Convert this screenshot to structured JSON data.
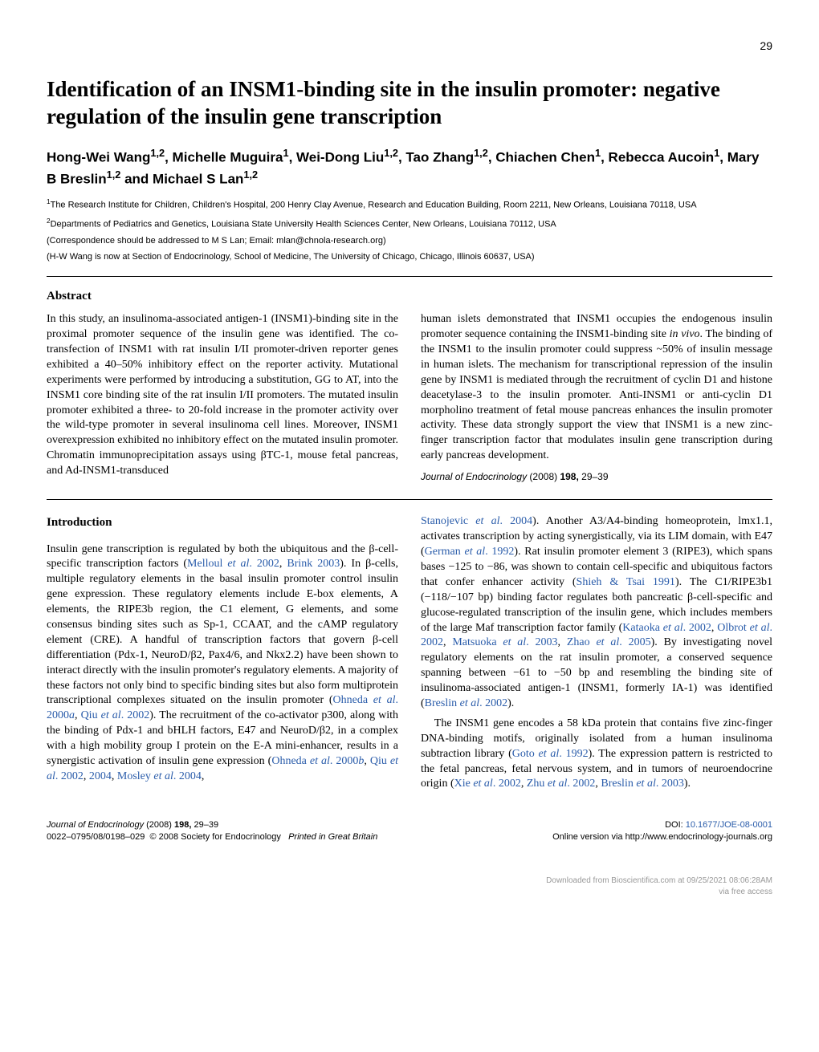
{
  "pageNumber": "29",
  "title": "Identification of an INSM1-binding site in the insulin promoter: negative regulation of the insulin gene transcription",
  "authorsHtml": "Hong-Wei Wang<sup>1,2</sup>, Michelle Muguira<sup>1</sup>, Wei-Dong Liu<sup>1,2</sup>, Tao Zhang<sup>1,2</sup>, Chiachen Chen<sup>1</sup>, Rebecca Aucoin<sup>1</sup>, Mary B Breslin<sup>1,2</sup> and Michael S Lan<sup>1,2</sup>",
  "affil1Html": "<sup>1</sup>The Research Institute for Children, Children's Hospital, 200 Henry Clay Avenue, Research and Education Building, Room 2211, New Orleans, Louisiana 70118, USA",
  "affil2Html": "<sup>2</sup>Departments of Pediatrics and Genetics, Louisiana State University Health Sciences Center, New Orleans, Louisiana 70112, USA",
  "correspondence": "(Correspondence should be addressed to M S Lan; Email: mlan@chnola-research.org)",
  "nowAt": "(H-W Wang is now at Section of Endocrinology, School of Medicine, The University of Chicago, Chicago, Illinois 60637, USA)",
  "abstractHeading": "Abstract",
  "abstractLeft": "In this study, an insulinoma-associated antigen-1 (INSM1)-binding site in the proximal promoter sequence of the insulin gene was identified. The co-transfection of INSM1 with rat insulin I/II promoter-driven reporter genes exhibited a 40–50% inhibitory effect on the reporter activity. Mutational experiments were performed by introducing a substitution, GG to AT, into the INSM1 core binding site of the rat insulin I/II promoters. The mutated insulin promoter exhibited a three- to 20-fold increase in the promoter activity over the wild-type promoter in several insulinoma cell lines. Moreover, INSM1 overexpression exhibited no inhibitory effect on the mutated insulin promoter. Chromatin immunoprecipitation assays using βTC-1, mouse fetal pancreas, and Ad-INSM1-transduced",
  "abstractRightHtml": "human islets demonstrated that INSM1 occupies the endogenous insulin promoter sequence containing the INSM1-binding site <span class=\"italic\">in vivo</span>. The binding of the INSM1 to the insulin promoter could suppress ~50% of insulin message in human islets. The mechanism for transcriptional repression of the insulin gene by INSM1 is mediated through the recruitment of cyclin D1 and histone deacetylase-3 to the insulin promoter. Anti-INSM1 or anti-cyclin D1 morpholino treatment of fetal mouse pancreas enhances the insulin promoter activity. These data strongly support the view that INSM1 is a new zinc-finger transcription factor that modulates insulin gene transcription during early pancreas development.",
  "journalRefHtml": "<span class=\"italic\">Journal of Endocrinology</span> (2008) <b>198,</b> 29–39",
  "introHeading": "Introduction",
  "introLeftHtml": "Insulin gene transcription is regulated by both the ubiquitous and the β-cell-specific transcription factors (<span class=\"link\">Melloul <span class=\"italic\">et al</span>. 2002</span>, <span class=\"link\">Brink 2003</span>). In β-cells, multiple regulatory elements in the basal insulin promoter control insulin gene expression. These regulatory elements include E-box elements, A elements, the RIPE3b region, the C1 element, G elements, and some consensus binding sites such as Sp-1, CCAAT, and the cAMP regulatory element (CRE). A handful of transcription factors that govern β-cell differentiation (Pdx-1, NeuroD/β2, Pax4/6, and Nkx2.2) have been shown to interact directly with the insulin promoter's regulatory elements. A majority of these factors not only bind to specific binding sites but also form multiprotein transcriptional complexes situated on the insulin promoter (<span class=\"link\">Ohneda <span class=\"italic\">et al</span>. 2000<span class=\"italic\">a</span></span>, <span class=\"link\">Qiu <span class=\"italic\">et al</span>. 2002</span>). The recruitment of the co-activator p300, along with the binding of Pdx-1 and bHLH factors, E47 and NeuroD/β2, in a complex with a high mobility group I protein on the E-A mini-enhancer, results in a synergistic activation of insulin gene expression (<span class=\"link\">Ohneda <span class=\"italic\">et al</span>. 2000<span class=\"italic\">b</span></span>, <span class=\"link\">Qiu <span class=\"italic\">et al</span>. 2002</span>, <span class=\"link\">2004</span>, <span class=\"link\">Mosley <span class=\"italic\">et al</span>. 2004</span>,",
  "introRightP1Html": "<span class=\"link\">Stanojevic <span class=\"italic\">et al</span>. 2004</span>). Another A3/A4-binding homeoprotein, lmx1.1, activates transcription by acting synergistically, via its LIM domain, with E47 (<span class=\"link\">German <span class=\"italic\">et al</span>. 1992</span>). Rat insulin promoter element 3 (RIPE3), which spans bases −125 to −86, was shown to contain cell-specific and ubiquitous factors that confer enhancer activity (<span class=\"link\">Shieh &amp; Tsai 1991</span>). The C1/RIPE3b1 (−118/−107 bp) binding factor regulates both pancreatic β-cell-specific and glucose-regulated transcription of the insulin gene, which includes members of the large Maf transcription factor family (<span class=\"link\">Kataoka <span class=\"italic\">et al</span>. 2002</span>, <span class=\"link\">Olbrot <span class=\"italic\">et al</span>. 2002</span>, <span class=\"link\">Matsuoka <span class=\"italic\">et al</span>. 2003</span>, <span class=\"link\">Zhao <span class=\"italic\">et al</span>. 2005</span>). By investigating novel regulatory elements on the rat insulin promoter, a conserved sequence spanning between −61 to −50 bp and resembling the binding site of insulinoma-associated antigen-1 (INSM1, formerly IA-1) was identified (<span class=\"link\">Breslin <span class=\"italic\">et al</span>. 2002</span>).",
  "introRightP2Html": "The INSM1 gene encodes a 58 kDa protein that contains five zinc-finger DNA-binding motifs, originally isolated from a human insulinoma subtraction library (<span class=\"link\">Goto <span class=\"italic\">et al</span>. 1992</span>). The expression pattern is restricted to the fetal pancreas, fetal nervous system, and in tumors of neuroendocrine origin (<span class=\"link\">Xie <span class=\"italic\">et al</span>. 2002</span>, <span class=\"link\">Zhu <span class=\"italic\">et al</span>. 2002</span>, <span class=\"link\">Breslin <span class=\"italic\">et al</span>. 2003</span>).",
  "footerLeftHtml": "<span class=\"italic\">Journal of Endocrinology</span> (2008) <b>198,</b> 29–39<br>0022–0795/08/0198–029&nbsp;&nbsp;© 2008 Society for Endocrinology&nbsp;&nbsp;&nbsp;<span class=\"italic\">Printed in Great Britain</span>",
  "footerRightHtml": "DOI: <span class=\"link\">10.1677/JOE-08-0001</span><br>Online version via http://www.endocrinology-journals.org",
  "downloadNote1": "Downloaded from Bioscientifica.com at 09/25/2021 08:06:28AM",
  "downloadNote2": "via free access"
}
